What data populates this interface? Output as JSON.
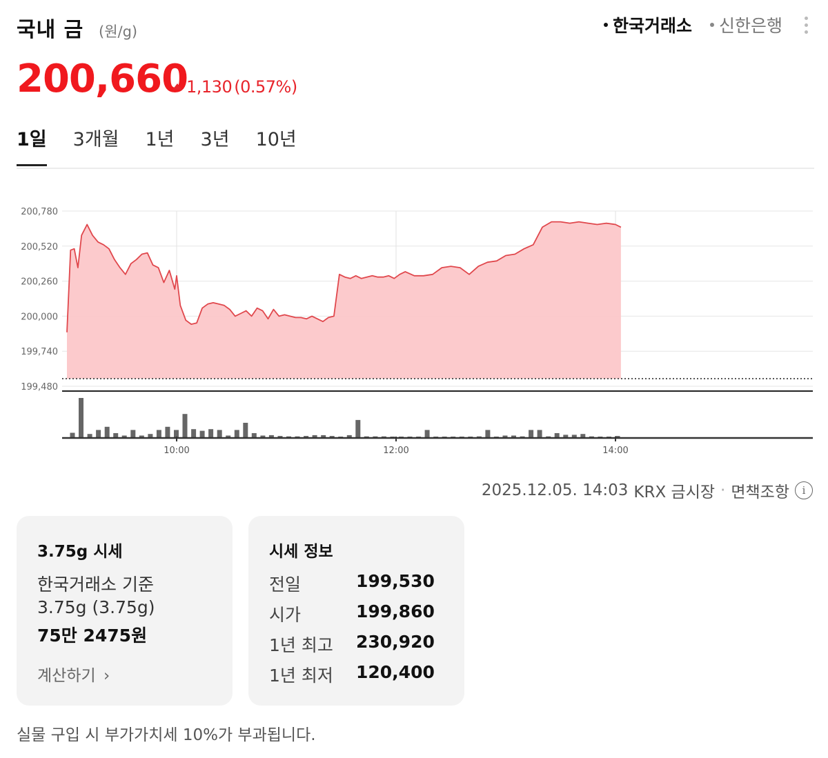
{
  "header": {
    "title": "국내 금",
    "unit": "(원/g)",
    "sources": [
      {
        "label": "한국거래소",
        "active": true
      },
      {
        "label": "신한은행",
        "active": false
      }
    ]
  },
  "price": {
    "current": "200,660",
    "change": "1,130",
    "change_pct": "(0.57%)",
    "direction": "up",
    "color": "#f0191e"
  },
  "tabs": [
    {
      "label": "1일",
      "active": true
    },
    {
      "label": "3개월",
      "active": false
    },
    {
      "label": "1년",
      "active": false
    },
    {
      "label": "3년",
      "active": false
    },
    {
      "label": "10년",
      "active": false
    }
  ],
  "chart_data": {
    "type": "area",
    "title": "국내 금 (원/g) 1일",
    "xlabel": "",
    "ylabel": "원/g",
    "ylim": [
      199480,
      200780
    ],
    "yticks": [
      "200,780",
      "200,520",
      "200,260",
      "200,000",
      "199,740",
      "199,480"
    ],
    "xticks": [
      "10:00",
      "12:00",
      "14:00"
    ],
    "grid": true,
    "reference_line": {
      "label": "전일",
      "value": 199530,
      "style": "dotted"
    },
    "series": [
      {
        "name": "price",
        "color": "#e0474c",
        "fill": "#fcc7c9",
        "x": [
          "09:00",
          "09:02",
          "09:04",
          "09:06",
          "09:08",
          "09:11",
          "09:14",
          "09:17",
          "09:20",
          "09:23",
          "09:26",
          "09:29",
          "09:32",
          "09:35",
          "09:38",
          "09:41",
          "09:44",
          "09:47",
          "09:50",
          "09:53",
          "09:56",
          "09:59",
          "10:00",
          "10:02",
          "10:05",
          "10:08",
          "10:11",
          "10:14",
          "10:17",
          "10:20",
          "10:23",
          "10:26",
          "10:29",
          "10:32",
          "10:35",
          "10:38",
          "10:41",
          "10:44",
          "10:47",
          "10:50",
          "10:53",
          "10:56",
          "10:59",
          "11:02",
          "11:05",
          "11:08",
          "11:11",
          "11:14",
          "11:17",
          "11:20",
          "11:23",
          "11:26",
          "11:29",
          "11:32",
          "11:35",
          "11:38",
          "11:41",
          "11:44",
          "11:47",
          "11:50",
          "11:53",
          "11:56",
          "11:59",
          "12:02",
          "12:05",
          "12:10",
          "12:15",
          "12:20",
          "12:25",
          "12:30",
          "12:35",
          "12:40",
          "12:45",
          "12:50",
          "12:55",
          "13:00",
          "13:05",
          "13:10",
          "13:15",
          "13:20",
          "13:25",
          "13:30",
          "13:35",
          "13:40",
          "13:45",
          "13:50",
          "13:55",
          "14:00",
          "14:03"
        ],
        "values": [
          199880,
          200490,
          200500,
          200360,
          200600,
          200680,
          200600,
          200550,
          200530,
          200500,
          200420,
          200360,
          200310,
          200390,
          200420,
          200460,
          200470,
          200380,
          200360,
          200250,
          200340,
          200200,
          200300,
          200080,
          199970,
          199940,
          199950,
          200060,
          200090,
          200100,
          200090,
          200080,
          200050,
          200000,
          200020,
          200040,
          200000,
          200060,
          200040,
          199980,
          200050,
          200000,
          200010,
          200000,
          199990,
          199990,
          199980,
          200000,
          199980,
          199960,
          199990,
          200000,
          200310,
          200290,
          200280,
          200300,
          200280,
          200290,
          200300,
          200290,
          200290,
          200300,
          200280,
          200310,
          200330,
          200300,
          200300,
          200310,
          200360,
          200370,
          200360,
          200310,
          200370,
          200400,
          200410,
          200450,
          200460,
          200500,
          200530,
          200660,
          200700,
          200700,
          200690,
          200700,
          200690,
          200680,
          200690,
          200680,
          200660
        ],
        "end_value": 200660
      },
      {
        "name": "volume",
        "color": "#666666",
        "type": "bar",
        "relative_heights": [
          0.13,
          1.0,
          0.1,
          0.2,
          0.28,
          0.12,
          0.06,
          0.2,
          0.06,
          0.1,
          0.2,
          0.28,
          0.2,
          0.6,
          0.22,
          0.18,
          0.22,
          0.2,
          0.06,
          0.2,
          0.38,
          0.12,
          0.06,
          0.07,
          0.05,
          0.04,
          0.04,
          0.05,
          0.07,
          0.07,
          0.05,
          0.03,
          0.07,
          0.45,
          0.04,
          0.04,
          0.04,
          0.03,
          0.03,
          0.02,
          0.03,
          0.2,
          0.03,
          0.03,
          0.03,
          0.03,
          0.02,
          0.04,
          0.2,
          0.03,
          0.06,
          0.06,
          0.04,
          0.2,
          0.2,
          0.04,
          0.12,
          0.08,
          0.08,
          0.1,
          0.04,
          0.03,
          0.03,
          0.05
        ]
      }
    ]
  },
  "meta": {
    "timestamp": "2025.12.05. 14:03",
    "market": "KRX 금시장",
    "separator": "·",
    "disclaimer": "면책조항",
    "info_icon": "info-icon"
  },
  "card_375": {
    "title": "3.75g 시세",
    "basis": "한국거래소 기준",
    "weight": "3.75g (3.75g)",
    "amount": "75만 2475원",
    "calc_label": "계산하기",
    "calc_icon": "chevron-right-icon"
  },
  "card_info": {
    "title": "시세 정보",
    "rows": [
      {
        "label": "전일",
        "value": "199,530"
      },
      {
        "label": "시가",
        "value": "199,860"
      },
      {
        "label": "1년 최고",
        "value": "230,920"
      },
      {
        "label": "1년 최저",
        "value": "120,400"
      }
    ]
  },
  "footer_note": "실물 구입 시 부가가치세 10%가 부과됩니다."
}
